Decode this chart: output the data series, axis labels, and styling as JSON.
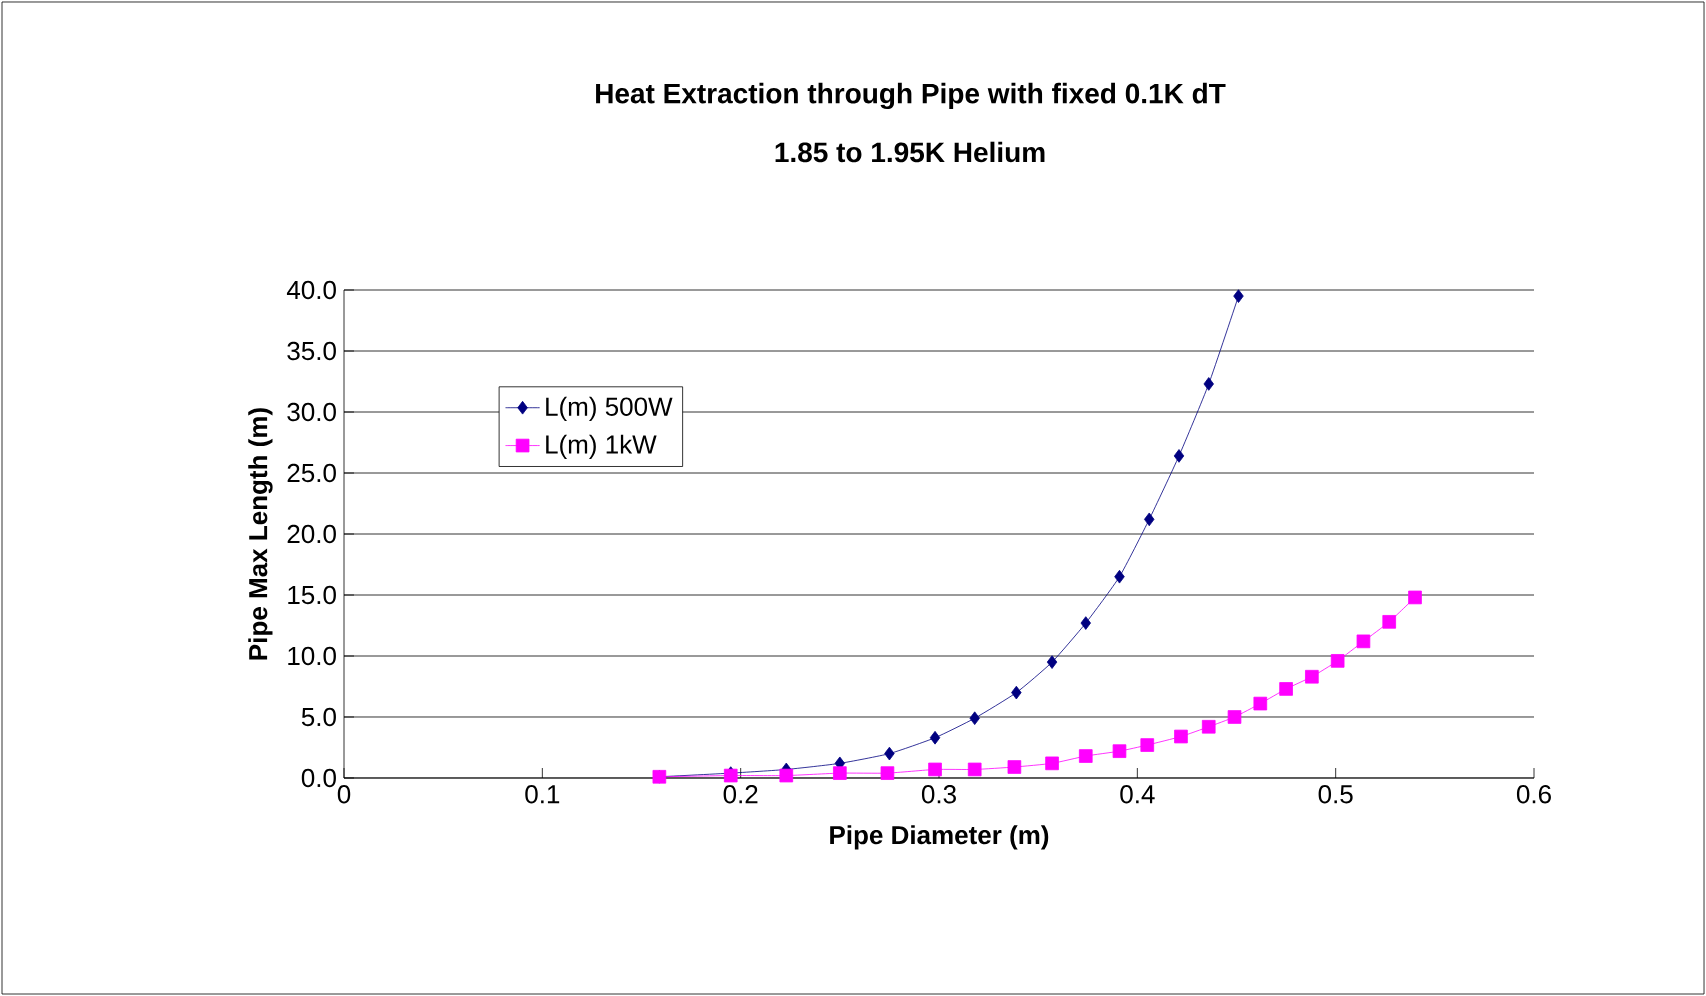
{
  "chart_data": {
    "type": "line",
    "title": "Heat Extraction through Pipe with fixed 0.1K dT",
    "subtitle": "1.85 to 1.95K Helium",
    "xlabel": "Pipe Diameter (m)",
    "ylabel": "Pipe Max Length (m)",
    "xlim": [
      0,
      0.6
    ],
    "xticks": [
      0,
      0.1,
      0.2,
      0.3,
      0.4,
      0.5,
      0.6
    ],
    "ylim": [
      0,
      40
    ],
    "yticks": [
      {
        "value": 0,
        "label": "0.0"
      },
      {
        "value": 5,
        "label": "5.0"
      },
      {
        "value": 10,
        "label": "10.0"
      },
      {
        "value": 15,
        "label": "15.0"
      },
      {
        "value": 20,
        "label": "20.0"
      },
      {
        "value": 25,
        "label": "25.0"
      },
      {
        "value": 30,
        "label": "30.0"
      },
      {
        "value": 35,
        "label": "35.0"
      },
      {
        "value": 40,
        "label": "40.0"
      }
    ],
    "grid": "y",
    "legend": "left",
    "series": [
      {
        "name": "L(m) 500W",
        "color": "#000080",
        "marker": "diamond",
        "x": [
          0.159,
          0.195,
          0.223,
          0.25,
          0.275,
          0.298,
          0.318,
          0.339,
          0.357,
          0.374,
          0.391,
          0.406,
          0.421,
          0.436,
          0.451
        ],
        "values": [
          0.1,
          0.4,
          0.7,
          1.2,
          2.0,
          3.3,
          4.9,
          7.0,
          9.5,
          12.7,
          16.5,
          21.2,
          26.4,
          32.3,
          39.5
        ]
      },
      {
        "name": "L(m) 1kW",
        "color": "#ff00ff",
        "marker": "square",
        "x": [
          0.159,
          0.195,
          0.223,
          0.25,
          0.274,
          0.298,
          0.318,
          0.338,
          0.357,
          0.374,
          0.391,
          0.405,
          0.422,
          0.436,
          0.449,
          0.462,
          0.475,
          0.488,
          0.501,
          0.514,
          0.527,
          0.54
        ],
        "values": [
          0.1,
          0.2,
          0.2,
          0.4,
          0.4,
          0.7,
          0.7,
          0.9,
          1.2,
          1.8,
          2.2,
          2.7,
          3.4,
          4.2,
          5.0,
          6.1,
          7.3,
          8.3,
          9.6,
          11.2,
          12.8,
          14.8
        ]
      }
    ]
  }
}
